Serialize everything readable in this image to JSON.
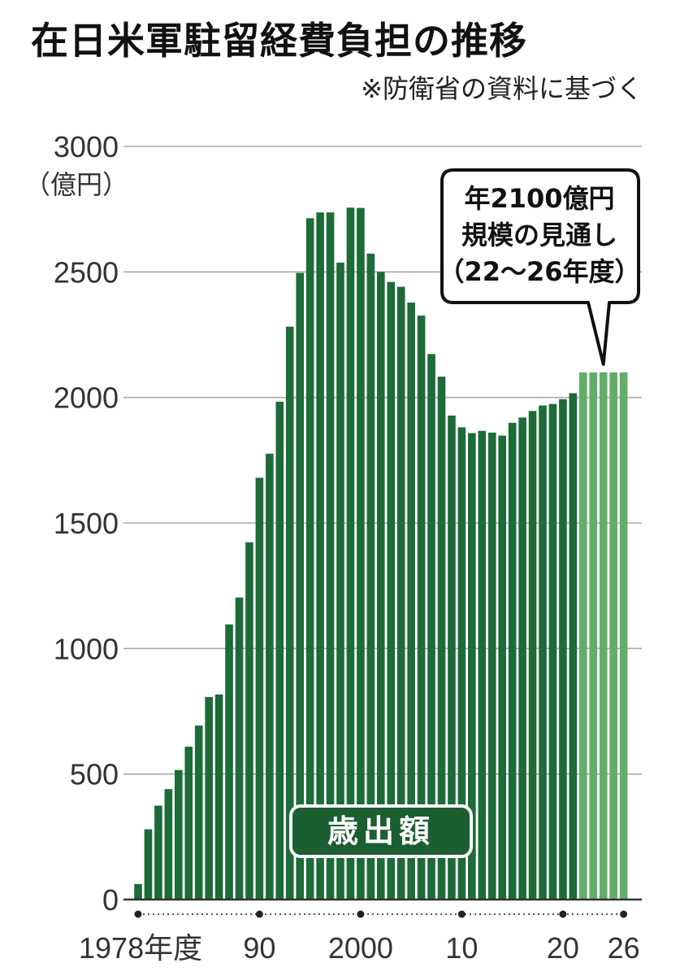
{
  "title": "在日米軍駐留経費負担の推移",
  "source_note": "※防衛省の資料に基づく",
  "chart_data": {
    "type": "bar",
    "title": "在日米軍駐留経費負担の推移",
    "y_unit": "（億円）",
    "ylim": [
      0,
      3000
    ],
    "y_ticks": [
      0,
      500,
      1000,
      1500,
      2000,
      2500,
      3000
    ],
    "x_tick_labels": [
      {
        "year": 1978,
        "label": "1978年度"
      },
      {
        "year": 1990,
        "label": "90"
      },
      {
        "year": 2000,
        "label": "2000"
      },
      {
        "year": 2010,
        "label": "10"
      },
      {
        "year": 2020,
        "label": "20"
      },
      {
        "year": 2026,
        "label": "26"
      }
    ],
    "grid": true,
    "series_label": "歳出額",
    "actual_color": "#1d6b38",
    "projected_color": "#62ad68",
    "x": [
      1978,
      1979,
      1980,
      1981,
      1982,
      1983,
      1984,
      1985,
      1986,
      1987,
      1988,
      1989,
      1990,
      1991,
      1992,
      1993,
      1994,
      1995,
      1996,
      1997,
      1998,
      1999,
      2000,
      2001,
      2002,
      2003,
      2004,
      2005,
      2006,
      2007,
      2008,
      2009,
      2010,
      2011,
      2012,
      2013,
      2014,
      2015,
      2016,
      2017,
      2018,
      2019,
      2020,
      2021,
      2022,
      2023,
      2024,
      2025,
      2026
    ],
    "values": [
      62,
      280,
      374,
      440,
      516,
      609,
      693,
      807,
      817,
      1096,
      1203,
      1423,
      1680,
      1776,
      1983,
      2282,
      2496,
      2714,
      2737,
      2737,
      2537,
      2756,
      2755,
      2573,
      2500,
      2460,
      2441,
      2378,
      2326,
      2173,
      2083,
      1928,
      1881,
      1858,
      1867,
      1860,
      1848,
      1899,
      1920,
      1946,
      1968,
      1974,
      1993,
      2017,
      2100,
      2100,
      2100,
      2100,
      2100
    ],
    "projected_from": 2022,
    "annotation": {
      "lines": [
        "年2100億円",
        "規模の見通し",
        "（22〜26年度）"
      ],
      "target_year": 2024
    }
  }
}
